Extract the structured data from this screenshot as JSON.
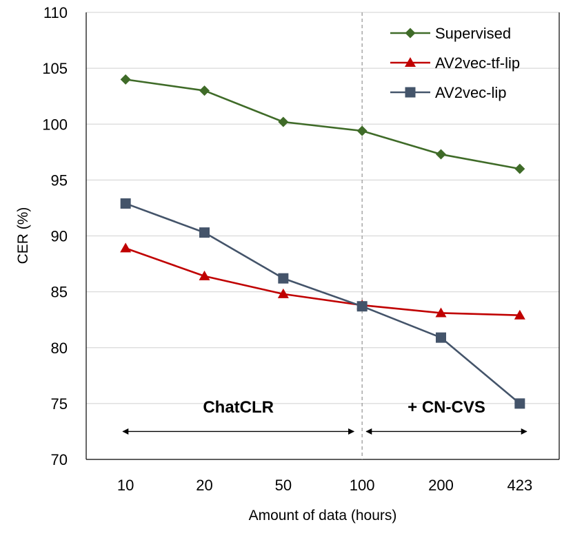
{
  "chart_data": {
    "type": "line",
    "xlabel": "Amount of data (hours)",
    "ylabel": "CER (%)",
    "categories": [
      "10",
      "20",
      "50",
      "100",
      "200",
      "423"
    ],
    "ylim": [
      70,
      110
    ],
    "yticks": [
      70,
      75,
      80,
      85,
      90,
      95,
      100,
      105,
      110
    ],
    "grid": true,
    "legend_position": "top-right",
    "series": [
      {
        "name": "Supervised",
        "color": "#3f6b28",
        "marker": "diamond",
        "values": [
          104.0,
          103.0,
          100.2,
          99.4,
          97.3,
          96.0
        ]
      },
      {
        "name": "AV2vec-tf-lip",
        "color": "#c00000",
        "marker": "triangle",
        "values": [
          88.9,
          86.4,
          84.8,
          83.8,
          83.1,
          82.9
        ]
      },
      {
        "name": "AV2vec-lip",
        "color": "#44546a",
        "marker": "square",
        "values": [
          92.9,
          90.3,
          86.2,
          83.7,
          80.9,
          75.0
        ]
      }
    ],
    "divider_category": "100",
    "annotations": [
      {
        "text": "ChatCLR",
        "from": "10",
        "to": "100"
      },
      {
        "text": "+ CN-CVS",
        "from": "100",
        "to": "423"
      }
    ]
  }
}
